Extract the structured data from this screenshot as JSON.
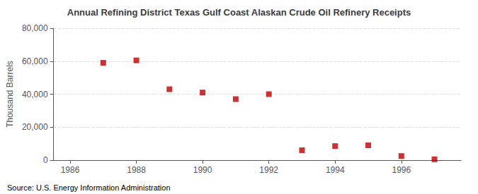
{
  "chart_data": {
    "type": "scatter",
    "title": "Annual Refining District Texas Gulf Coast Alaskan Crude Oil Refinery Receipts",
    "ylabel": "Thousand Barrels",
    "annotations": [
      "Source: U.S. Energy Information Administration"
    ],
    "x": [
      1987,
      1988,
      1989,
      1990,
      1991,
      1992,
      1993,
      1994,
      1995,
      1996,
      1997
    ],
    "values": [
      59000,
      60500,
      43000,
      41000,
      37000,
      40000,
      6000,
      8500,
      9000,
      2500,
      500
    ],
    "color": "#bb0000",
    "marker": "square",
    "xlim": [
      1985.5,
      1997.8
    ],
    "xticks": [
      1986,
      1988,
      1990,
      1992,
      1994,
      1996
    ],
    "ylim": [
      0,
      80000
    ],
    "yticks": [
      0,
      {
        "value": 20000,
        "label": "20,000"
      },
      {
        "value": 40000,
        "label": "40,000"
      },
      {
        "value": 60000,
        "label": "60,000"
      },
      {
        "value": 80000,
        "label": "80,000"
      }
    ],
    "grid": true
  }
}
